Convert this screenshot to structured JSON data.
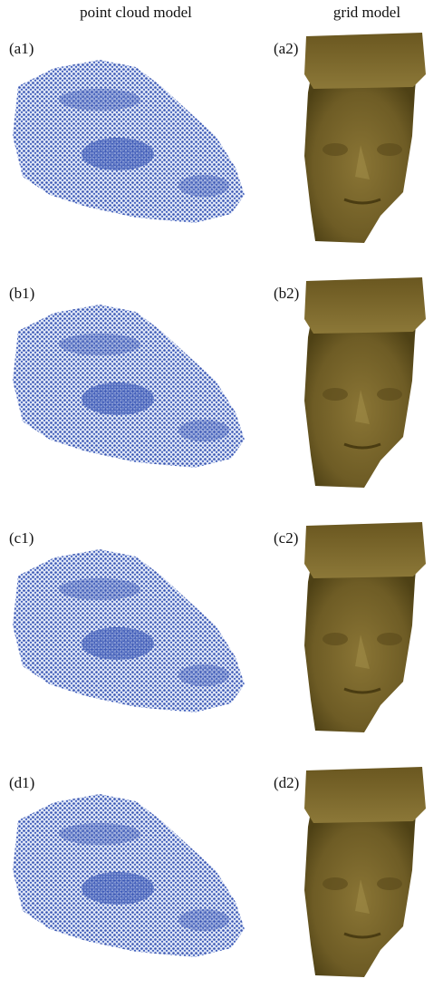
{
  "headers": [
    "point cloud model",
    "grid model"
  ],
  "panels": [
    [
      "(a1)",
      "(a2)"
    ],
    [
      "(b1)",
      "(b2)"
    ],
    [
      "(c1)",
      "(c2)"
    ],
    [
      "(d1)",
      "(d2)"
    ]
  ]
}
